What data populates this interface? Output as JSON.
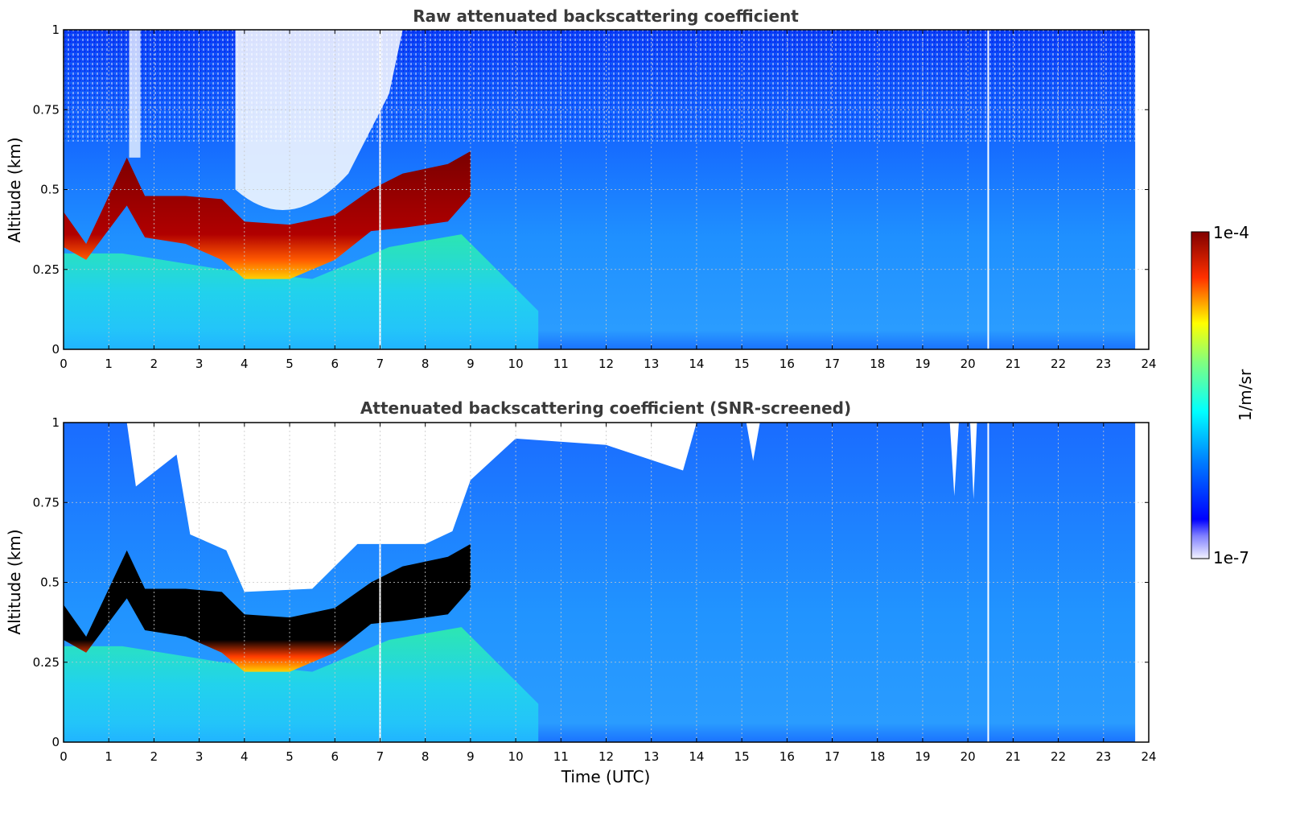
{
  "chart_data": [
    {
      "type": "heatmap",
      "title": "Raw attenuated backscattering coefficient",
      "xlabel": "",
      "ylabel": "Altitude (km)",
      "xlim": [
        0,
        24
      ],
      "ylim": [
        0,
        1
      ],
      "xticks": [
        "0",
        "1",
        "2",
        "3",
        "4",
        "5",
        "6",
        "7",
        "8",
        "9",
        "10",
        "11",
        "12",
        "13",
        "14",
        "15",
        "16",
        "17",
        "18",
        "19",
        "20",
        "21",
        "22",
        "23",
        "24"
      ],
      "yticks": [
        "0",
        "0.25",
        "0.5",
        "0.75",
        "1"
      ],
      "grid": true,
      "data_extent_hours": [
        0,
        23.7
      ],
      "data_gaps_hours": [
        7.0,
        20.45
      ],
      "layer_top_km": [
        {
          "x": 0.0,
          "y": 0.43
        },
        {
          "x": 0.5,
          "y": 0.33
        },
        {
          "x": 1.4,
          "y": 0.6
        },
        {
          "x": 1.8,
          "y": 0.48
        },
        {
          "x": 2.7,
          "y": 0.48
        },
        {
          "x": 3.5,
          "y": 0.47
        },
        {
          "x": 4.0,
          "y": 0.4
        },
        {
          "x": 5.0,
          "y": 0.39
        },
        {
          "x": 6.0,
          "y": 0.42
        },
        {
          "x": 6.8,
          "y": 0.5
        },
        {
          "x": 7.5,
          "y": 0.55
        },
        {
          "x": 8.5,
          "y": 0.58
        },
        {
          "x": 9.0,
          "y": 0.62
        }
      ],
      "layer_bottom_km": [
        {
          "x": 0.0,
          "y": 0.32
        },
        {
          "x": 0.5,
          "y": 0.28
        },
        {
          "x": 1.4,
          "y": 0.45
        },
        {
          "x": 1.8,
          "y": 0.35
        },
        {
          "x": 2.7,
          "y": 0.33
        },
        {
          "x": 3.5,
          "y": 0.28
        },
        {
          "x": 4.0,
          "y": 0.22
        },
        {
          "x": 5.0,
          "y": 0.22
        },
        {
          "x": 6.0,
          "y": 0.28
        },
        {
          "x": 6.8,
          "y": 0.37
        },
        {
          "x": 7.5,
          "y": 0.38
        },
        {
          "x": 8.5,
          "y": 0.4
        },
        {
          "x": 9.0,
          "y": 0.48
        }
      ]
    },
    {
      "type": "heatmap",
      "title": "Attenuated backscattering coefficient (SNR-screened)",
      "xlabel": "Time (UTC)",
      "ylabel": "Altitude (km)",
      "xlim": [
        0,
        24
      ],
      "ylim": [
        0,
        1
      ],
      "xticks": [
        "0",
        "1",
        "2",
        "3",
        "4",
        "5",
        "6",
        "7",
        "8",
        "9",
        "10",
        "11",
        "12",
        "13",
        "14",
        "15",
        "16",
        "17",
        "18",
        "19",
        "20",
        "21",
        "22",
        "23",
        "24"
      ],
      "yticks": [
        "0",
        "0.25",
        "0.5",
        "0.75",
        "1"
      ],
      "grid": true,
      "data_extent_hours": [
        0,
        23.7
      ],
      "data_gaps_hours": [
        7.0,
        20.45
      ],
      "screened_top_km": [
        {
          "x": 0.0,
          "y": 1.0
        },
        {
          "x": 1.4,
          "y": 1.0
        },
        {
          "x": 1.6,
          "y": 0.8
        },
        {
          "x": 2.5,
          "y": 0.9
        },
        {
          "x": 2.8,
          "y": 0.65
        },
        {
          "x": 3.6,
          "y": 0.6
        },
        {
          "x": 4.0,
          "y": 0.47
        },
        {
          "x": 5.5,
          "y": 0.48
        },
        {
          "x": 6.5,
          "y": 0.62
        },
        {
          "x": 8.0,
          "y": 0.62
        },
        {
          "x": 8.6,
          "y": 0.66
        },
        {
          "x": 9.0,
          "y": 0.82
        },
        {
          "x": 10.0,
          "y": 0.95
        },
        {
          "x": 12.0,
          "y": 0.93
        },
        {
          "x": 13.7,
          "y": 0.85
        },
        {
          "x": 14.0,
          "y": 1.0
        },
        {
          "x": 23.7,
          "y": 1.0
        }
      ]
    }
  ],
  "colorbar": {
    "label": "1/m/sr",
    "max_label": "1e-4",
    "min_label": "1e-7",
    "colormap": "jet",
    "scale": "log"
  }
}
